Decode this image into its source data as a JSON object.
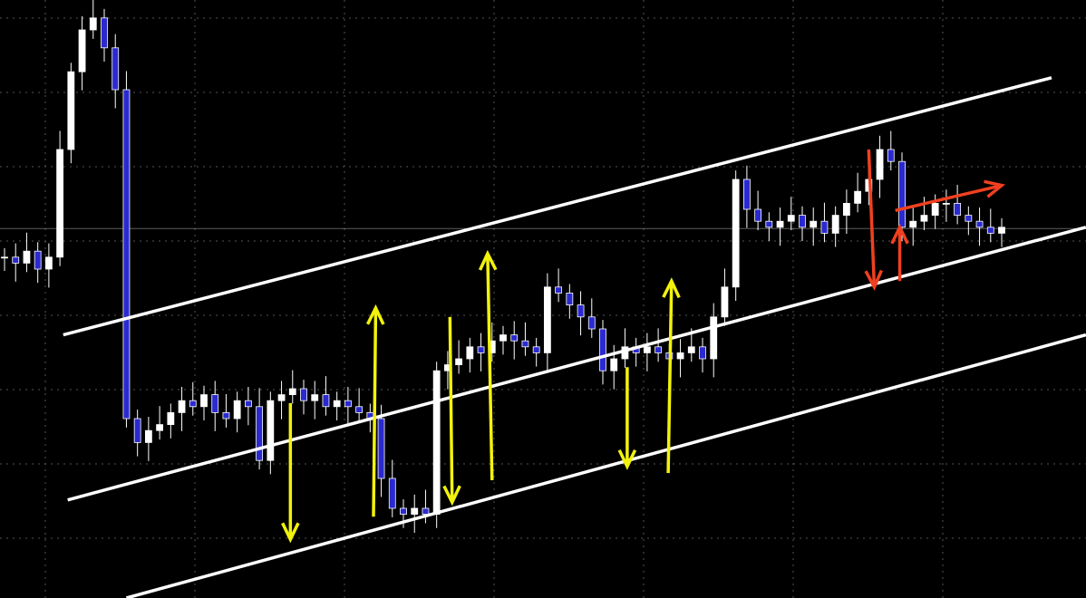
{
  "chart_data": {
    "type": "candlestick",
    "title": "",
    "xlabel": "",
    "ylabel": "",
    "grid": true,
    "ylim": [
      0,
      100
    ],
    "xlim": [
      0,
      98
    ],
    "colors": {
      "background": "#000000",
      "bull_candle": "#ffffff",
      "bear_candle": "#2a2ad0",
      "wick": "#ffffff",
      "grid": "#555555",
      "channel": "#ffffff",
      "price_line": "#bbbbbb",
      "arrow_primary": "#f2f20c",
      "arrow_secondary": "#f04020"
    },
    "closes": [
      57,
      56,
      58,
      55,
      57,
      75,
      88,
      95,
      97,
      92,
      85,
      30,
      26,
      28,
      29,
      31,
      33,
      32,
      34,
      31,
      30,
      33,
      32,
      23,
      33,
      34,
      35,
      33,
      34,
      32,
      33,
      32,
      31,
      30,
      20,
      15,
      14,
      15,
      14,
      38,
      39,
      40,
      42,
      41,
      43,
      44,
      43,
      42,
      41,
      52,
      51,
      49,
      47,
      45,
      38,
      40,
      42,
      41,
      42,
      41,
      40,
      41,
      42,
      40,
      47,
      52,
      70,
      65,
      63,
      62,
      63,
      64,
      62,
      63,
      61,
      64,
      66,
      68,
      70,
      75,
      73,
      62,
      63,
      64,
      66,
      66,
      64,
      63,
      62,
      61,
      62
    ],
    "horizontal_line": 61.8,
    "channel_lines": [
      {
        "from": [
          5.3,
          44
        ],
        "to": [
          94.5,
          87
        ]
      },
      {
        "from": [
          5.7,
          16.4
        ],
        "to": [
          97.6,
          62
        ]
      },
      {
        "from": [
          11,
          0
        ],
        "to": [
          97.6,
          44
        ]
      }
    ],
    "arrows": [
      {
        "color": "arrow_primary",
        "from": [
          25.8,
          32.6
        ],
        "to": [
          25.8,
          9.8
        ]
      },
      {
        "color": "arrow_primary",
        "from": [
          33.3,
          13.6
        ],
        "to": [
          33.5,
          48.5
        ]
      },
      {
        "color": "arrow_primary",
        "from": [
          40.2,
          47
        ],
        "to": [
          40.4,
          16
        ]
      },
      {
        "color": "arrow_primary",
        "from": [
          44.0,
          19.7
        ],
        "to": [
          43.6,
          57.6
        ]
      },
      {
        "color": "arrow_primary",
        "from": [
          56.2,
          38.6
        ],
        "to": [
          56.2,
          22
        ]
      },
      {
        "color": "arrow_primary",
        "from": [
          59.9,
          20.9
        ],
        "to": [
          60.2,
          53
        ]
      },
      {
        "color": "arrow_secondary",
        "from": [
          78.0,
          75
        ],
        "to": [
          78.5,
          52
        ]
      },
      {
        "color": "arrow_secondary",
        "from": [
          80.8,
          53
        ],
        "to": [
          80.8,
          62
        ]
      },
      {
        "color": "arrow_secondary",
        "from": [
          80.4,
          64.8
        ],
        "to": [
          90,
          69
        ]
      }
    ]
  }
}
